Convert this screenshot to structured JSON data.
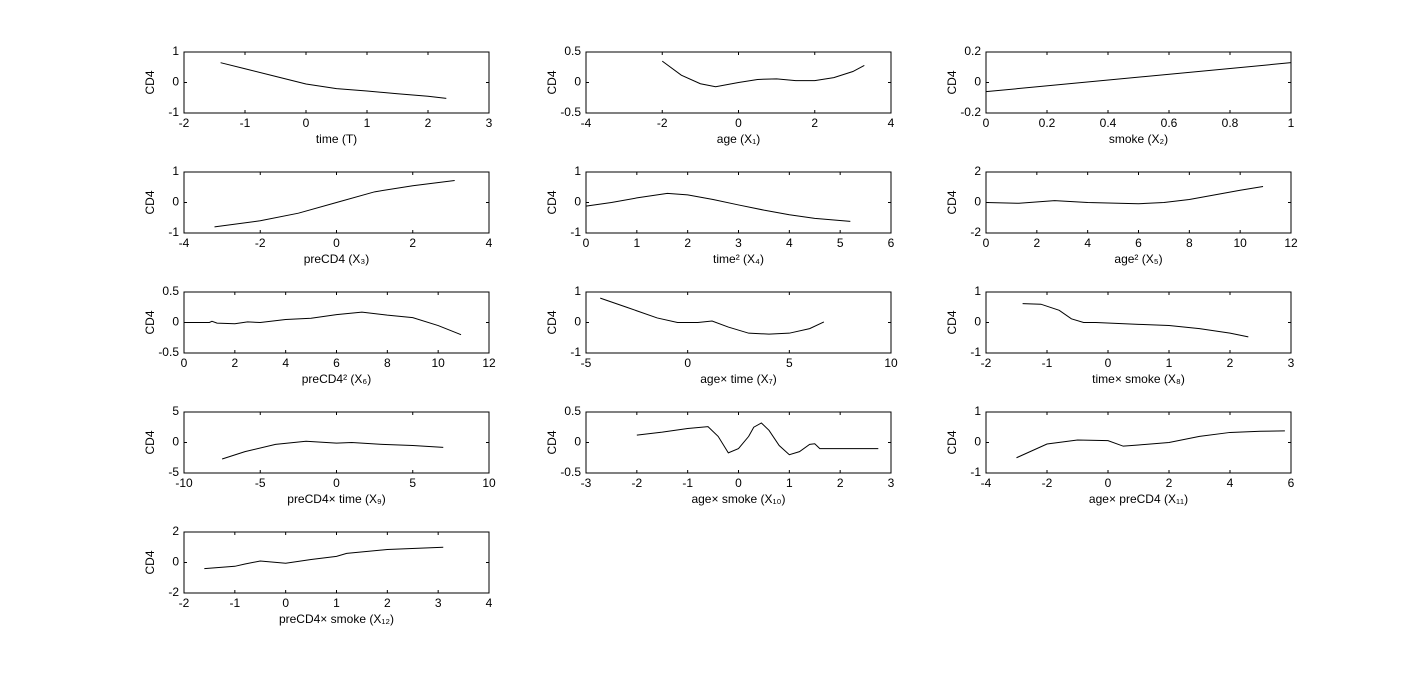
{
  "chart_data": [
    {
      "type": "line",
      "ylabel": "CD4",
      "xlabel": "time (T)",
      "xlim": [
        -2,
        3
      ],
      "ylim": [
        -1,
        1
      ],
      "xticks": [
        -2,
        -1,
        0,
        1,
        2,
        3
      ],
      "yticks": [
        -1,
        0,
        1
      ],
      "x": [
        -1.4,
        -1,
        -0.5,
        0,
        0.5,
        1,
        1.5,
        2,
        2.3
      ],
      "values": [
        0.65,
        0.45,
        0.2,
        -0.05,
        -0.2,
        -0.28,
        -0.37,
        -0.45,
        -0.52
      ]
    },
    {
      "type": "line",
      "ylabel": "CD4",
      "xlabel": "age (X₁)",
      "xlim": [
        -4,
        4
      ],
      "ylim": [
        -0.5,
        0.5
      ],
      "xticks": [
        -4,
        -2,
        0,
        2,
        4
      ],
      "yticks": [
        -0.5,
        0,
        0.5
      ],
      "x": [
        -2,
        -1.5,
        -1,
        -0.6,
        0,
        0.5,
        1,
        1.5,
        2,
        2.5,
        3,
        3.3
      ],
      "values": [
        0.35,
        0.12,
        -0.02,
        -0.07,
        0,
        0.05,
        0.06,
        0.03,
        0.03,
        0.08,
        0.18,
        0.28
      ]
    },
    {
      "type": "line",
      "ylabel": "CD4",
      "xlabel": "smoke (X₂)",
      "xlim": [
        0,
        1
      ],
      "ylim": [
        -0.2,
        0.2
      ],
      "xticks": [
        0,
        0.2,
        0.4,
        0.6,
        0.8,
        1
      ],
      "yticks": [
        -0.2,
        0,
        0.2
      ],
      "x": [
        0,
        1
      ],
      "values": [
        -0.06,
        0.13
      ]
    },
    {
      "type": "line",
      "ylabel": "CD4",
      "xlabel": "preCD4 (X₃)",
      "xlim": [
        -4,
        4
      ],
      "ylim": [
        -1,
        1
      ],
      "xticks": [
        -4,
        -2,
        0,
        2,
        4
      ],
      "yticks": [
        -1,
        0,
        1
      ],
      "x": [
        -3.2,
        -2,
        -1,
        0,
        1,
        2,
        3.1
      ],
      "values": [
        -0.8,
        -0.6,
        -0.35,
        0,
        0.35,
        0.55,
        0.72
      ]
    },
    {
      "type": "line",
      "ylabel": "CD4",
      "xlabel": "time² (X₄)",
      "xlim": [
        0,
        6
      ],
      "ylim": [
        -1,
        1
      ],
      "xticks": [
        0,
        1,
        2,
        3,
        4,
        5,
        6
      ],
      "yticks": [
        -1,
        0,
        1
      ],
      "x": [
        0,
        0.5,
        1,
        1.6,
        2,
        2.5,
        3,
        3.5,
        4,
        4.5,
        5.2
      ],
      "values": [
        -0.12,
        0,
        0.15,
        0.3,
        0.25,
        0.1,
        -0.08,
        -0.25,
        -0.4,
        -0.52,
        -0.62
      ]
    },
    {
      "type": "line",
      "ylabel": "CD4",
      "xlabel": "age² (X₅)",
      "xlim": [
        0,
        12
      ],
      "ylim": [
        -2,
        2
      ],
      "xticks": [
        0,
        2,
        4,
        6,
        8,
        10,
        12
      ],
      "yticks": [
        -2,
        0,
        2
      ],
      "x": [
        0,
        1.3,
        2.7,
        4,
        6,
        7,
        8,
        9,
        10,
        10.9
      ],
      "values": [
        0,
        -0.05,
        0.12,
        0,
        -0.08,
        0,
        0.2,
        0.5,
        0.8,
        1.05
      ]
    },
    {
      "type": "line",
      "ylabel": "CD4",
      "xlabel": "preCD4² (X₆)",
      "xlim": [
        0,
        12
      ],
      "ylim": [
        -0.5,
        0.5
      ],
      "xticks": [
        0,
        2,
        4,
        6,
        8,
        10,
        12
      ],
      "yticks": [
        -0.5,
        0,
        0.5
      ],
      "x": [
        0,
        1,
        1.1,
        1.3,
        2,
        2.5,
        3,
        4,
        5,
        6,
        7,
        8,
        9,
        10,
        10.9
      ],
      "values": [
        0,
        0,
        0.02,
        -0.01,
        -0.02,
        0.01,
        0,
        0.05,
        0.07,
        0.13,
        0.17,
        0.12,
        0.08,
        -0.05,
        -0.2
      ]
    },
    {
      "type": "line",
      "ylabel": "CD4",
      "xlabel": "age× time (X₇)",
      "xlim": [
        -5,
        10
      ],
      "ylim": [
        -1,
        1
      ],
      "xticks": [
        -5,
        0,
        5,
        10
      ],
      "yticks": [
        -1,
        0,
        1
      ],
      "x": [
        -4.3,
        -3,
        -1.5,
        -0.5,
        0.5,
        1.2,
        2,
        3,
        4,
        5,
        6,
        6.7
      ],
      "values": [
        0.8,
        0.5,
        0.15,
        0,
        0,
        0.05,
        -0.15,
        -0.35,
        -0.38,
        -0.35,
        -0.2,
        0.02
      ]
    },
    {
      "type": "line",
      "ylabel": "CD4",
      "xlabel": "time× smoke (X₈)",
      "xlim": [
        -2,
        3
      ],
      "ylim": [
        -1,
        1
      ],
      "xticks": [
        -2,
        -1,
        0,
        1,
        2,
        3
      ],
      "yticks": [
        -1,
        0,
        1
      ],
      "x": [
        -1.4,
        -1.1,
        -0.8,
        -0.6,
        -0.4,
        -0.2,
        0.5,
        1,
        1.5,
        2,
        2.3
      ],
      "values": [
        0.62,
        0.6,
        0.4,
        0.12,
        0,
        0,
        -0.06,
        -0.1,
        -0.2,
        -0.35,
        -0.47
      ]
    },
    {
      "type": "line",
      "ylabel": "CD4",
      "xlabel": "preCD4× time (X₉)",
      "xlim": [
        -10,
        10
      ],
      "ylim": [
        -5,
        5
      ],
      "xticks": [
        -10,
        -5,
        0,
        5,
        10
      ],
      "yticks": [
        -5,
        0,
        5
      ],
      "x": [
        -7.5,
        -6,
        -4,
        -2,
        0,
        1,
        3,
        5,
        7
      ],
      "values": [
        -2.7,
        -1.5,
        -0.3,
        0.2,
        -0.1,
        0,
        -0.3,
        -0.5,
        -0.8
      ]
    },
    {
      "type": "line",
      "ylabel": "CD4",
      "xlabel": "age× smoke (X₁₀)",
      "xlim": [
        -3,
        3
      ],
      "ylim": [
        -0.5,
        0.5
      ],
      "xticks": [
        -3,
        -2,
        -1,
        0,
        1,
        2,
        3
      ],
      "yticks": [
        -0.5,
        0,
        0.5
      ],
      "x": [
        -2,
        -1.5,
        -1,
        -0.6,
        -0.4,
        -0.2,
        0,
        0.2,
        0.3,
        0.45,
        0.6,
        0.8,
        1,
        1.2,
        1.4,
        1.5,
        1.6,
        2,
        2.75
      ],
      "values": [
        0.12,
        0.17,
        0.23,
        0.26,
        0.1,
        -0.17,
        -0.1,
        0.1,
        0.25,
        0.32,
        0.2,
        -0.05,
        -0.2,
        -0.15,
        -0.03,
        -0.02,
        -0.1,
        -0.1,
        -0.1
      ]
    },
    {
      "type": "line",
      "ylabel": "CD4",
      "xlabel": "age× preCD4 (X₁₁)",
      "xlim": [
        -4,
        6
      ],
      "ylim": [
        -1,
        1
      ],
      "xticks": [
        -4,
        -2,
        0,
        2,
        4,
        6
      ],
      "yticks": [
        -1,
        0,
        1
      ],
      "x": [
        -3,
        -2,
        -1,
        0,
        0.5,
        1,
        2,
        3,
        4,
        5,
        5.8
      ],
      "values": [
        -0.5,
        -0.05,
        0.08,
        0.06,
        -0.12,
        -0.08,
        0,
        0.2,
        0.33,
        0.37,
        0.38
      ]
    },
    {
      "type": "line",
      "ylabel": "CD4",
      "xlabel": "preCD4× smoke (X₁₂)",
      "xlim": [
        -2,
        4
      ],
      "ylim": [
        -2,
        2
      ],
      "xticks": [
        -2,
        -1,
        0,
        1,
        2,
        3,
        4
      ],
      "yticks": [
        -2,
        0,
        2
      ],
      "x": [
        -1.6,
        -1,
        -0.8,
        -0.5,
        0,
        0.5,
        1,
        1.2,
        2,
        3.1
      ],
      "values": [
        -0.4,
        -0.25,
        -0.1,
        0.1,
        -0.05,
        0.2,
        0.4,
        0.6,
        0.85,
        1
      ]
    }
  ]
}
